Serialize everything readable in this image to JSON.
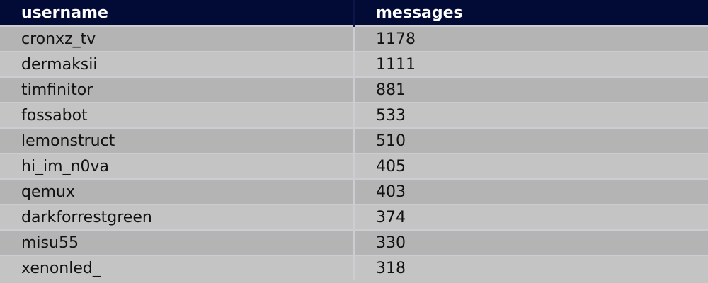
{
  "columns": [
    "username",
    "messages"
  ],
  "rows": [
    [
      "cronxz_tv",
      "1178"
    ],
    [
      "dermaksii",
      "1111"
    ],
    [
      "timfinitor",
      "881"
    ],
    [
      "fossabot",
      "533"
    ],
    [
      "lemonstruct",
      "510"
    ],
    [
      "hi_im_n0va",
      "405"
    ],
    [
      "qemux",
      "403"
    ],
    [
      "darkforrestgreen",
      "374"
    ],
    [
      "misu55",
      "330"
    ],
    [
      "xenonled_",
      "318"
    ]
  ]
}
